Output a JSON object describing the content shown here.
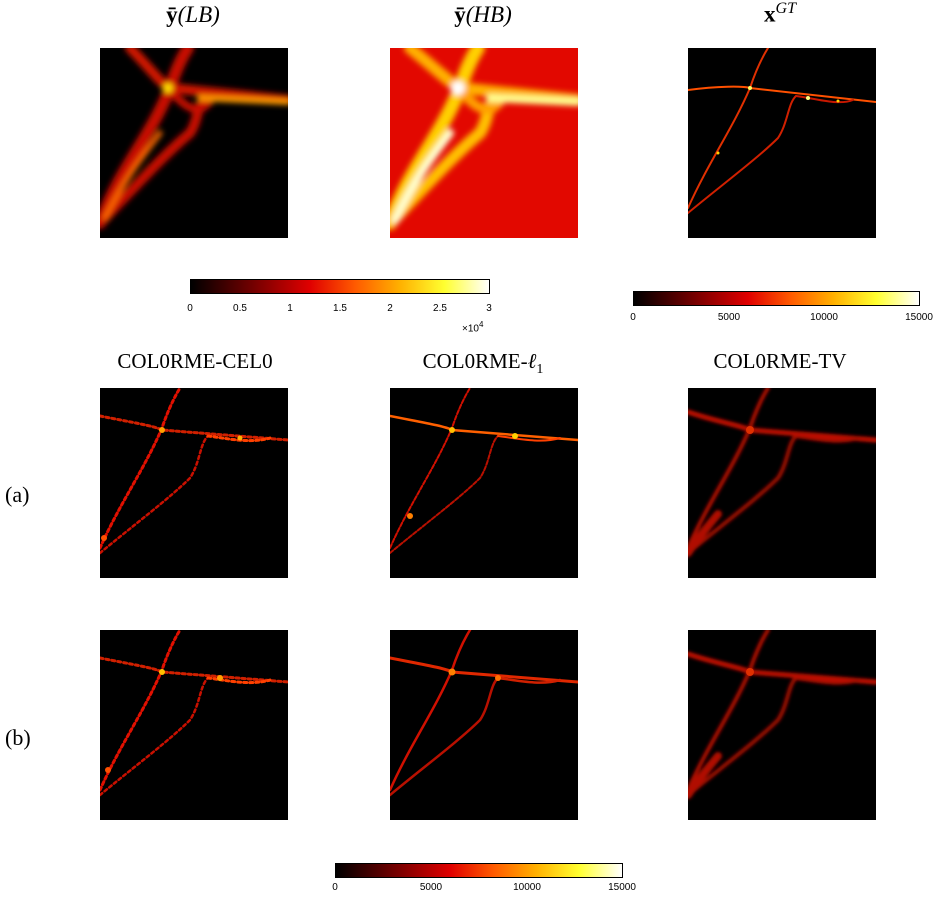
{
  "titles": {
    "lb": "(LB)",
    "hb": "(HB)",
    "gt": "GT",
    "cel0": "COL0RME-CEL0",
    "l1_prefix": "COL0RME-",
    "l1_sym": "ℓ",
    "l1_sub": "1",
    "tv": "COL0RME-TV"
  },
  "row_labels": {
    "a": "(a)",
    "b": "(b)"
  },
  "colorbar_top_left": {
    "ticks": [
      "0",
      "0.5",
      "1",
      "1.5",
      "2",
      "2.5",
      "3"
    ],
    "multiplier": "×10",
    "exponent": "4"
  },
  "colorbar_top_right": {
    "ticks": [
      "0",
      "5000",
      "10000",
      "15000"
    ]
  },
  "colorbar_bottom": {
    "ticks": [
      "0",
      "5000",
      "10000",
      "15000"
    ]
  },
  "colormap": "hot"
}
